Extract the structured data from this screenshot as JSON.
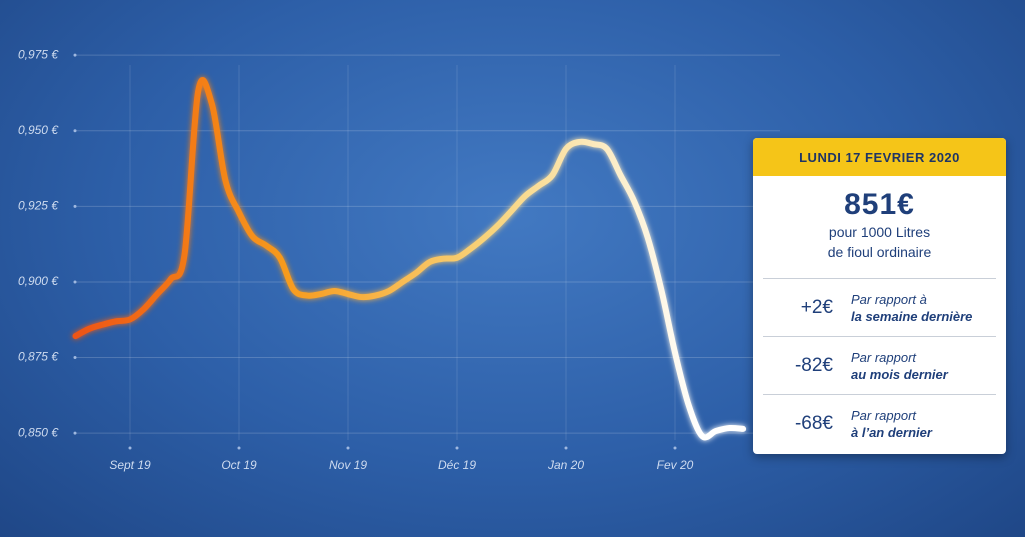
{
  "chart_data": {
    "type": "line",
    "categories": [
      null,
      null,
      null,
      null,
      "Sept 19",
      null,
      null,
      null,
      null,
      null,
      null,
      null,
      "Oct 19",
      null,
      null,
      null,
      null,
      null,
      null,
      null,
      "Nov 19",
      null,
      null,
      null,
      null,
      null,
      null,
      null,
      "Déc 19",
      null,
      null,
      null,
      null,
      null,
      null,
      null,
      "Jan 20",
      null,
      null,
      null,
      null,
      null,
      null,
      null,
      "Fev 20",
      null,
      null,
      null,
      null,
      null
    ],
    "values": [
      0.8821,
      0.8845,
      0.8859,
      0.887,
      0.8876,
      0.891,
      0.896,
      0.901,
      0.909,
      0.963,
      0.959,
      0.9336,
      0.923,
      0.915,
      0.912,
      0.908,
      0.8975,
      0.8955,
      0.896,
      0.897,
      0.896,
      0.895,
      0.8955,
      0.897,
      0.9,
      0.903,
      0.9066,
      0.9077,
      0.908,
      0.911,
      0.9146,
      0.9187,
      0.9235,
      0.9284,
      0.9318,
      0.9353,
      0.944,
      0.9463,
      0.9456,
      0.944,
      0.9353,
      0.9267,
      0.9146,
      0.8973,
      0.8766,
      0.8593,
      0.849,
      0.8507,
      0.8517,
      0.8514
    ],
    "color_stops": [
      "#ee5412",
      "#f79a1c",
      "#f8d47c",
      "#ffffff"
    ],
    "ylim": [
      0.84,
      0.98
    ],
    "yticks": [
      {
        "value": 0.85,
        "label": "0,850 €"
      },
      {
        "value": 0.875,
        "label": "0,875 €"
      },
      {
        "value": 0.9,
        "label": "0,900 €"
      },
      {
        "value": 0.925,
        "label": "0,925 €"
      },
      {
        "value": 0.95,
        "label": "0,950 €"
      },
      {
        "value": 0.975,
        "label": "0,975 €"
      }
    ],
    "grid": true
  },
  "card": {
    "date": "LUNDI 17 FEVRIER 2020",
    "price": "851€",
    "line1": "pour 1000 Litres",
    "line2": "de fioul ordinaire",
    "rows": [
      {
        "delta": "+2€",
        "label": "Par rapport à",
        "period": "la  semaine dernière"
      },
      {
        "delta": "-82€",
        "label": "Par rapport",
        "period": "au mois dernier"
      },
      {
        "delta": "-68€",
        "label": "Par rapport",
        "period": "à l’an dernier"
      }
    ]
  }
}
